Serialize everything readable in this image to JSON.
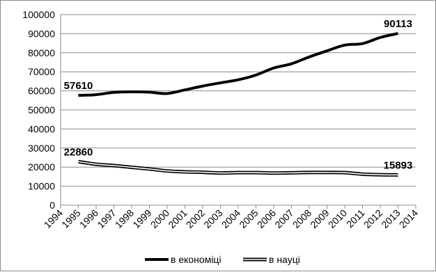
{
  "chart_data": {
    "type": "line",
    "title": "",
    "xlabel": "",
    "ylabel": "",
    "xlim": [
      1994,
      2014
    ],
    "ylim": [
      0,
      100000
    ],
    "y_ticks": [
      0,
      10000,
      20000,
      30000,
      40000,
      50000,
      60000,
      70000,
      80000,
      90000,
      100000
    ],
    "x_ticks": [
      1994,
      1995,
      1996,
      1997,
      1998,
      1999,
      2000,
      2001,
      2002,
      2003,
      2004,
      2005,
      2006,
      2007,
      2008,
      2009,
      2010,
      2011,
      2012,
      2013,
      2014
    ],
    "grid": "horizontal",
    "legend_position": "bottom",
    "x": [
      1995,
      1996,
      1997,
      1998,
      1999,
      2000,
      2001,
      2002,
      2003,
      2004,
      2005,
      2006,
      2007,
      2008,
      2009,
      2010,
      2011,
      2012,
      2013
    ],
    "series": [
      {
        "name": "в економіці",
        "style": "solid-thick",
        "color": "#000000",
        "values": [
          57610,
          58000,
          59200,
          59500,
          59300,
          58600,
          60500,
          62500,
          64200,
          65800,
          68300,
          72000,
          74200,
          77800,
          81000,
          84000,
          84800,
          88000,
          90113
        ]
      },
      {
        "name": "в науці",
        "style": "double-line",
        "color": "#000000",
        "values": [
          22860,
          21500,
          20800,
          19900,
          19000,
          18000,
          17500,
          17300,
          16900,
          17100,
          17100,
          16900,
          17000,
          17200,
          17200,
          17100,
          16300,
          16000,
          15893
        ]
      }
    ],
    "annotations": [
      {
        "text": "57610",
        "series": 0,
        "x": 1995
      },
      {
        "text": "90113",
        "series": 0,
        "x": 2013
      },
      {
        "text": "22860",
        "series": 1,
        "x": 1995
      },
      {
        "text": "15893",
        "series": 1,
        "x": 2013
      }
    ]
  }
}
